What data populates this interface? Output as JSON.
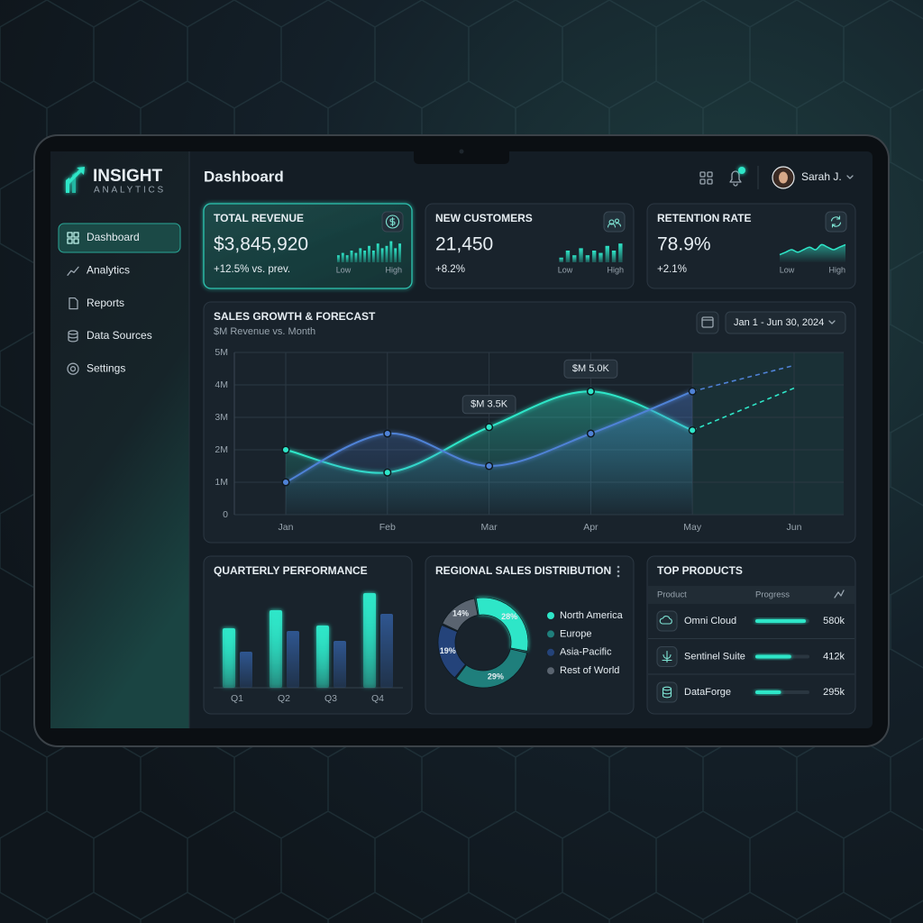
{
  "brand": {
    "name": "INSIGHT",
    "tagline": "ANALYTICS"
  },
  "nav": [
    {
      "label": "Dashboard",
      "active": true
    },
    {
      "label": "Analytics"
    },
    {
      "label": "Reports"
    },
    {
      "label": "Data Sources"
    },
    {
      "label": "Settings"
    }
  ],
  "header": {
    "title": "Dashboard",
    "user": "Sarah J."
  },
  "kpis": [
    {
      "title": "TOTAL REVENUE",
      "value": "$3,845,920",
      "change": "+12.5% vs. prev.",
      "low_label": "Low",
      "high_label": "High",
      "highlight": true,
      "sparkline": {
        "type": "bar",
        "values": [
          3,
          4,
          3,
          5,
          4,
          6,
          5,
          7,
          5,
          8,
          6,
          7,
          9,
          6,
          8
        ]
      }
    },
    {
      "title": "NEW CUSTOMERS",
      "value": "21,450",
      "change": "+8.2%",
      "low_label": "Low",
      "high_label": "High",
      "sparkline": {
        "type": "bar",
        "values": [
          2,
          5,
          3,
          6,
          3,
          5,
          4,
          7,
          5,
          8
        ]
      }
    },
    {
      "title": "RETENTION RATE",
      "value": "78.9%",
      "change": "+2.1%",
      "low_label": "Low",
      "high_label": "High",
      "sparkline": {
        "type": "area",
        "values": [
          3,
          4,
          5,
          4,
          5,
          6,
          5,
          7,
          6,
          5,
          6,
          7
        ]
      }
    }
  ],
  "sales_chart": {
    "type": "line",
    "title": "SALES GROWTH & FORECAST",
    "subtitle": "$M Revenue vs. Month",
    "date_range": "Jan 1 - Jun 30, 2024",
    "categories": [
      "Jan",
      "Feb",
      "Mar",
      "Apr",
      "May",
      "Jun"
    ],
    "ylim": [
      0,
      5
    ],
    "yticks": [
      0,
      {
        "value": 1,
        "label": "1M"
      },
      {
        "value": 2,
        "label": "2M"
      },
      {
        "value": 3,
        "label": "3M"
      },
      {
        "value": 4,
        "label": "4M"
      },
      {
        "value": 5,
        "label": "5M"
      }
    ],
    "grid": true,
    "series": [
      {
        "color": "#2ee6c8",
        "values": [
          2.0,
          1.3,
          2.7,
          3.8,
          2.6,
          null
        ],
        "forecast": [
          null,
          null,
          null,
          null,
          2.6,
          3.9
        ]
      },
      {
        "color": "#4f82d6",
        "values": [
          1.0,
          2.5,
          1.5,
          2.5,
          3.8,
          null
        ],
        "forecast": [
          null,
          null,
          null,
          null,
          3.8,
          4.6
        ]
      }
    ],
    "annotations": [
      {
        "x": "Mar",
        "text": "$M 3.5K"
      },
      {
        "x": "Apr",
        "text": "$M 5.0K"
      }
    ]
  },
  "quarterly": {
    "type": "bar",
    "title": "QUARTERLY PERFORMANCE",
    "categories": [
      "Q1",
      "Q2",
      "Q3",
      "Q4"
    ],
    "series": [
      {
        "color": "#2ee6c8",
        "values": [
          66,
          86,
          69,
          105
        ]
      },
      {
        "color": "#2f5690",
        "values": [
          40,
          63,
          52,
          82
        ]
      }
    ]
  },
  "regional": {
    "type": "donut",
    "title": "REGIONAL SALES DISTRIBUTION",
    "categories": [
      "North America",
      "Europe",
      "Asia-Pacific",
      "Rest of World"
    ],
    "values": [
      28,
      29,
      19,
      14
    ],
    "value_labels": [
      "28%",
      "29%",
      "19%",
      "14%"
    ],
    "colors": [
      "#2ee6c8",
      "#1f7f7c",
      "#24437a",
      "#5a6470"
    ]
  },
  "top_products": {
    "title": "TOP PRODUCTS",
    "columns": [
      "Product",
      "Progress"
    ],
    "categories": [
      "Omni Cloud",
      "Sentinel Suite",
      "DataForge"
    ],
    "values": [
      580000,
      412000,
      295000
    ],
    "value_labels": [
      "580k",
      "412k",
      "295k"
    ],
    "color": "#2ee6c8"
  }
}
